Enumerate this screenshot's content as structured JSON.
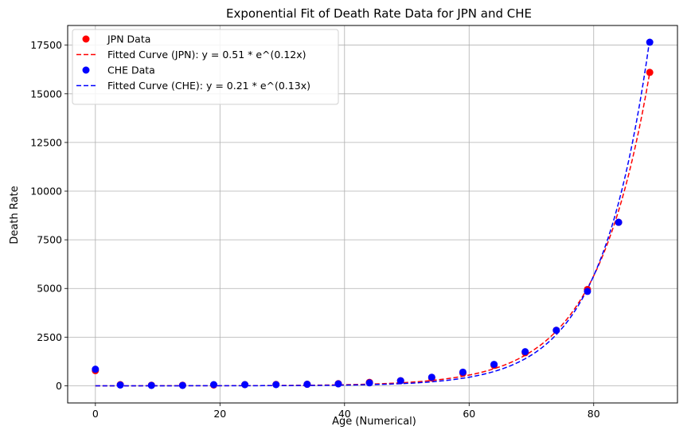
{
  "chart_data": {
    "type": "scatter",
    "title": "Exponential Fit of Death Rate Data for JPN and CHE",
    "xlabel": "Age (Numerical)",
    "ylabel": "Death Rate",
    "xlim": [
      -4.45,
      93.45
    ],
    "ylim": [
      -881,
      18510
    ],
    "xticks": [
      0,
      20,
      40,
      60,
      80
    ],
    "yticks": [
      0,
      2500,
      5000,
      7500,
      10000,
      12500,
      15000,
      17500
    ],
    "grid": true,
    "legend_position": "top-left",
    "series": [
      {
        "name": "JPN Data",
        "kind": "scatter",
        "color": "#ff0000",
        "x": [
          0,
          4,
          9,
          14,
          19,
          24,
          29,
          34,
          39,
          44,
          49,
          54,
          59,
          64,
          69,
          74,
          79,
          84,
          89
        ],
        "y": [
          780,
          60,
          30,
          30,
          40,
          60,
          70,
          80,
          110,
          180,
          260,
          400,
          650,
          1050,
          1700,
          2850,
          4950,
          8400,
          16100
        ]
      },
      {
        "name": "Fitted Curve (JPN): y = 0.51 * e^(0.12x)",
        "kind": "line",
        "style": "dashed",
        "color": "#ff0000",
        "a": 0.51,
        "b": 0.1164,
        "x_range": [
          0,
          89
        ]
      },
      {
        "name": "CHE Data",
        "kind": "scatter",
        "color": "#0000ff",
        "x": [
          0,
          4,
          9,
          14,
          19,
          24,
          29,
          34,
          39,
          44,
          49,
          54,
          59,
          64,
          69,
          74,
          79,
          84,
          89
        ],
        "y": [
          850,
          40,
          20,
          20,
          60,
          60,
          60,
          80,
          100,
          150,
          260,
          440,
          700,
          1100,
          1750,
          2850,
          4850,
          8400,
          17650
        ]
      },
      {
        "name": "Fitted Curve (CHE): y = 0.21 * e^(0.13x)",
        "kind": "line",
        "style": "dashed",
        "color": "#0000ff",
        "a": 0.21,
        "b": 0.1275,
        "x_range": [
          0,
          89
        ]
      }
    ]
  }
}
